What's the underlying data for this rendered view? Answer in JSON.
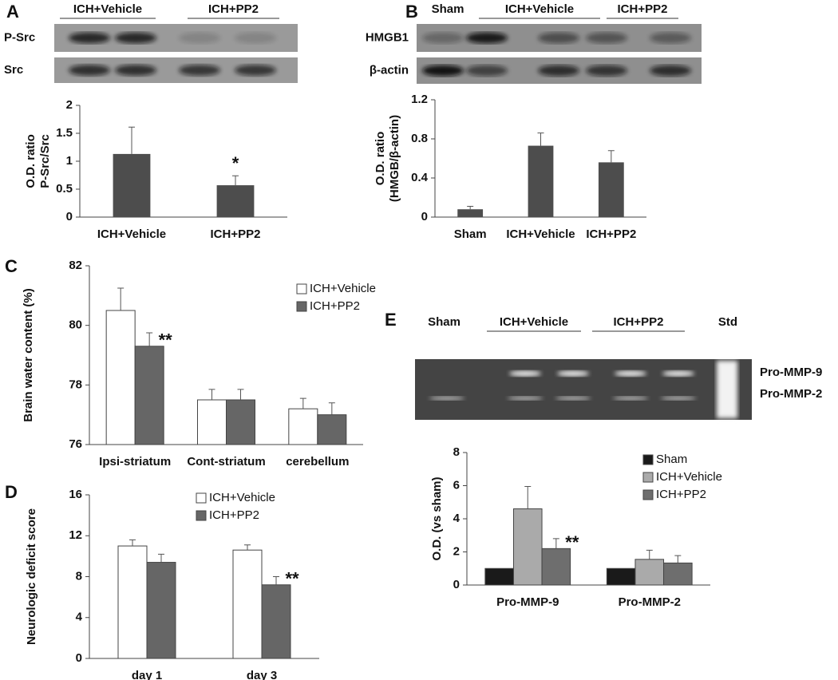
{
  "chart_data": [
    {
      "type": "bar",
      "panel": "A",
      "ylabel": [
        "O.D. ratio",
        "P-Src/Src"
      ],
      "categories": [
        "ICH+Vehicle",
        "ICH+PP2"
      ],
      "values": [
        1.13,
        0.57
      ],
      "errors": [
        0.48,
        0.17
      ],
      "color": "#4d4d4d",
      "ylim": [
        0,
        2
      ],
      "yticks": [
        0,
        0.5,
        1,
        1.5,
        2
      ],
      "annotation": "*",
      "blot": {
        "heads": [
          "ICH+Vehicle",
          "ICH+PP2"
        ],
        "rows": [
          "P-Src",
          "Src"
        ]
      }
    },
    {
      "type": "bar",
      "panel": "B",
      "ylabel": [
        "O.D. ratio",
        "(HMGB/β-actin)"
      ],
      "categories": [
        "Sham",
        "ICH+Vehicle",
        "ICH+PP2"
      ],
      "values": [
        0.08,
        0.73,
        0.56
      ],
      "errors": [
        0.03,
        0.13,
        0.12
      ],
      "color": "#4d4d4d",
      "ylim": [
        0,
        1.2
      ],
      "yticks": [
        0,
        0.4,
        0.8,
        1.2
      ],
      "blot": {
        "heads": [
          "Sham",
          "ICH+Vehicle",
          "ICH+PP2"
        ],
        "rows": [
          "HMGB1",
          "β-actin"
        ]
      }
    },
    {
      "type": "bar",
      "panel": "C",
      "ylabel": [
        "Brain water content (%)"
      ],
      "categories": [
        "Ipsi-striatum",
        "Cont-striatum",
        "cerebellum"
      ],
      "series": [
        {
          "name": "ICH+Vehicle",
          "color": "#ffffff",
          "values": [
            80.5,
            77.5,
            77.2
          ],
          "errors": [
            0.75,
            0.35,
            0.35
          ]
        },
        {
          "name": "ICH+PP2",
          "color": "#666666",
          "values": [
            79.3,
            77.5,
            77.0
          ],
          "errors": [
            0.45,
            0.35,
            0.4
          ]
        }
      ],
      "ylim": [
        76,
        82
      ],
      "yticks": [
        76,
        78,
        80,
        82
      ],
      "annotation": "**"
    },
    {
      "type": "bar",
      "panel": "D",
      "ylabel": [
        "Neurologic deficit score"
      ],
      "categories": [
        "day 1",
        "day 3"
      ],
      "series": [
        {
          "name": "ICH+Vehicle",
          "color": "#ffffff",
          "values": [
            11.0,
            10.6
          ],
          "errors": [
            0.6,
            0.5
          ]
        },
        {
          "name": "ICH+PP2",
          "color": "#666666",
          "values": [
            9.4,
            7.2
          ],
          "errors": [
            0.8,
            0.8
          ]
        }
      ],
      "ylim": [
        0,
        16
      ],
      "yticks": [
        0,
        4,
        8,
        12,
        16
      ],
      "annotation": "**"
    },
    {
      "type": "bar",
      "panel": "E",
      "ylabel": [
        "O.D. (vs sham)"
      ],
      "categories": [
        "Pro-MMP-9",
        "Pro-MMP-2"
      ],
      "series": [
        {
          "name": "Sham",
          "color": "#1a1a1a",
          "values": [
            1,
            1
          ]
        },
        {
          "name": "ICH+Vehicle",
          "color": "#aaaaaa",
          "values": [
            4.6,
            1.55
          ],
          "errors": [
            1.35,
            0.55
          ]
        },
        {
          "name": "ICH+PP2",
          "color": "#6e6e6e",
          "values": [
            2.2,
            1.33
          ],
          "errors": [
            0.6,
            0.45
          ]
        }
      ],
      "ylim": [
        0,
        8
      ],
      "yticks": [
        0,
        2,
        4,
        6,
        8
      ],
      "annotation": "**",
      "blot": {
        "heads": [
          "Sham",
          "ICH+Vehicle",
          "ICH+PP2",
          "Std"
        ],
        "rows": [
          "Pro-MMP-9",
          "Pro-MMP-2"
        ]
      }
    }
  ]
}
